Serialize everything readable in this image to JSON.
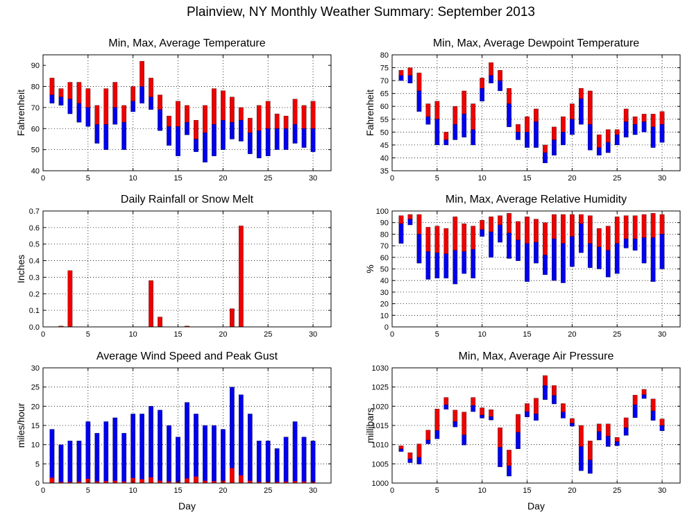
{
  "title": "Plainview, NY Monthly Weather Summary: September 2013",
  "colors": {
    "red": "#ee0000",
    "blue": "#0000ee",
    "axis": "#000000"
  },
  "chart_data": [
    {
      "id": "temperature",
      "type": "bar",
      "title": "Min, Max, Average Temperature",
      "xlabel": "",
      "ylabel": "Fahrenheit",
      "xlim": [
        0,
        32
      ],
      "ylim": [
        40,
        95
      ],
      "xticks": [
        0,
        5,
        10,
        15,
        20,
        25,
        30
      ],
      "yticks": [
        40,
        50,
        60,
        70,
        80,
        90
      ],
      "grid": true,
      "x": [
        1,
        2,
        3,
        4,
        5,
        6,
        7,
        8,
        9,
        10,
        11,
        12,
        13,
        14,
        15,
        16,
        17,
        18,
        19,
        20,
        21,
        22,
        23,
        24,
        25,
        26,
        27,
        28,
        29,
        30
      ],
      "min": [
        72,
        71,
        67,
        63,
        61,
        53,
        50,
        62,
        50,
        68,
        72,
        69,
        59,
        52,
        47,
        57,
        49,
        44,
        47,
        50,
        55,
        54,
        48,
        46,
        47,
        50,
        50,
        53,
        51,
        49
      ],
      "avg": [
        76,
        75,
        74,
        72,
        70,
        62,
        62,
        70,
        63,
        73,
        80,
        75,
        69,
        61,
        61,
        63,
        55,
        58,
        62,
        64,
        63,
        64,
        58,
        59,
        60,
        60,
        60,
        62,
        60,
        60
      ],
      "max": [
        84,
        79,
        82,
        82,
        79,
        71,
        79,
        82,
        71,
        80,
        92,
        84,
        76,
        66,
        73,
        71,
        64,
        71,
        79,
        78,
        75,
        70,
        65,
        71,
        73,
        67,
        66,
        74,
        71,
        73
      ]
    },
    {
      "id": "dewpoint",
      "type": "bar",
      "title": "Min, Max, Average Dewpoint Temperature",
      "xlabel": "",
      "ylabel": "Fahrenheit",
      "xlim": [
        0,
        32
      ],
      "ylim": [
        35,
        80
      ],
      "xticks": [
        0,
        5,
        10,
        15,
        20,
        25,
        30
      ],
      "yticks": [
        35,
        40,
        45,
        50,
        55,
        60,
        65,
        70,
        75,
        80
      ],
      "grid": true,
      "x": [
        1,
        2,
        3,
        4,
        5,
        6,
        7,
        8,
        9,
        10,
        11,
        12,
        13,
        14,
        15,
        16,
        17,
        18,
        19,
        20,
        21,
        22,
        23,
        24,
        25,
        26,
        27,
        28,
        29,
        30
      ],
      "min": [
        70,
        69,
        58,
        53,
        45,
        45,
        47,
        48,
        45,
        62,
        69,
        66,
        52,
        47,
        44,
        44,
        38,
        41,
        45,
        49,
        53,
        43,
        41,
        42,
        45,
        48,
        49,
        50,
        44,
        46
      ],
      "avg": [
        72,
        72,
        66,
        56,
        55,
        47,
        53,
        57,
        51,
        67,
        72,
        70,
        61,
        50,
        50,
        54,
        42,
        47,
        50,
        55,
        63,
        53,
        44,
        46,
        49,
        54,
        53,
        54,
        52,
        53
      ],
      "max": [
        74,
        75,
        73,
        61,
        62,
        50,
        60,
        66,
        61,
        71,
        77,
        74,
        67,
        53,
        56,
        59,
        45,
        52,
        56,
        61,
        67,
        66,
        49,
        51,
        51,
        59,
        56,
        57,
        57,
        58
      ]
    },
    {
      "id": "rainfall",
      "type": "bar",
      "title": "Daily Rainfall or Snow Melt",
      "xlabel": "",
      "ylabel": "Inches",
      "xlim": [
        0,
        32
      ],
      "ylim": [
        0,
        0.7
      ],
      "xticks": [
        0,
        5,
        10,
        15,
        20,
        25,
        30
      ],
      "yticks": [
        0,
        0.1,
        0.2,
        0.3,
        0.4,
        0.5,
        0.6,
        0.7
      ],
      "ytick_labels": [
        "0.0",
        "0.1",
        "0.2",
        "0.3",
        "0.4",
        "0.5",
        "0.6",
        "0.7"
      ],
      "grid": true,
      "x": [
        1,
        2,
        3,
        4,
        5,
        6,
        7,
        8,
        9,
        10,
        11,
        12,
        13,
        14,
        15,
        16,
        17,
        18,
        19,
        20,
        21,
        22,
        23,
        24,
        25,
        26,
        27,
        28,
        29,
        30
      ],
      "values": [
        0,
        0.005,
        0.34,
        0,
        0,
        0,
        0,
        0,
        0,
        0,
        0,
        0.28,
        0.06,
        0,
        0,
        0.005,
        0,
        0,
        0,
        0,
        0.11,
        0.61,
        0,
        0,
        0,
        0,
        0,
        0,
        0,
        0
      ]
    },
    {
      "id": "humidity",
      "type": "bar",
      "title": "Min, Max, Average Relative Humidity",
      "xlabel": "",
      "ylabel": "%",
      "xlim": [
        0,
        32
      ],
      "ylim": [
        0,
        100
      ],
      "xticks": [
        0,
        5,
        10,
        15,
        20,
        25,
        30
      ],
      "yticks": [
        0,
        10,
        20,
        30,
        40,
        50,
        60,
        70,
        80,
        90,
        100
      ],
      "grid": true,
      "x": [
        1,
        2,
        3,
        4,
        5,
        6,
        7,
        8,
        9,
        10,
        11,
        12,
        13,
        14,
        15,
        16,
        17,
        18,
        19,
        20,
        21,
        22,
        23,
        24,
        25,
        26,
        27,
        28,
        29,
        30
      ],
      "min": [
        72,
        88,
        55,
        41,
        42,
        42,
        37,
        46,
        42,
        78,
        60,
        73,
        59,
        57,
        39,
        55,
        45,
        40,
        38,
        52,
        64,
        51,
        50,
        43,
        46,
        68,
        66,
        55,
        39,
        50
      ],
      "avg": [
        89,
        93,
        80,
        65,
        64,
        63,
        66,
        65,
        67,
        84,
        82,
        88,
        81,
        75,
        72,
        73,
        62,
        76,
        72,
        78,
        89,
        72,
        69,
        66,
        72,
        76,
        76,
        77,
        77,
        80
      ],
      "max": [
        96,
        97,
        97,
        86,
        87,
        85,
        95,
        89,
        87,
        92,
        95,
        96,
        98,
        91,
        95,
        93,
        90,
        97,
        97,
        97,
        97,
        96,
        85,
        87,
        95,
        96,
        96,
        97,
        98,
        97
      ]
    },
    {
      "id": "wind",
      "type": "bar",
      "title": "Average Wind Speed and Peak Gust",
      "xlabel": "Day",
      "ylabel": "miles/hour",
      "xlim": [
        0,
        32
      ],
      "ylim": [
        0,
        30
      ],
      "xticks": [
        0,
        5,
        10,
        15,
        20,
        25,
        30
      ],
      "yticks": [
        0,
        5,
        10,
        15,
        20,
        25,
        30
      ],
      "grid": true,
      "x": [
        1,
        2,
        3,
        4,
        5,
        6,
        7,
        8,
        9,
        10,
        11,
        12,
        13,
        14,
        15,
        16,
        17,
        18,
        19,
        20,
        21,
        22,
        23,
        24,
        25,
        26,
        27,
        28,
        29,
        30
      ],
      "peak_gust": [
        14,
        10,
        11,
        11,
        16,
        13,
        16,
        17,
        13,
        18,
        18,
        20,
        19,
        15,
        12,
        21,
        18,
        15,
        15,
        14,
        25,
        23,
        18,
        11,
        11,
        9,
        12,
        16,
        12,
        11
      ],
      "avg_speed": [
        1.4,
        0.3,
        0.3,
        0.4,
        1.1,
        0.4,
        0.5,
        0.6,
        0.4,
        1.3,
        1.0,
        1.5,
        0.6,
        0.4,
        0.3,
        1.2,
        1.7,
        0.6,
        0.5,
        0.6,
        3.9,
        2.0,
        0.6,
        0.3,
        0.3,
        0.3,
        0.4,
        0.5,
        0.4,
        0.3
      ]
    },
    {
      "id": "pressure",
      "type": "bar",
      "title": "Min, Max, Average Air Pressure",
      "xlabel": "Day",
      "ylabel": "millibars",
      "xlim": [
        0,
        32
      ],
      "ylim": [
        1000,
        1030
      ],
      "xticks": [
        0,
        5,
        10,
        15,
        20,
        25,
        30
      ],
      "yticks": [
        1000,
        1005,
        1010,
        1015,
        1020,
        1025,
        1030
      ],
      "grid": true,
      "x": [
        1,
        2,
        3,
        4,
        5,
        6,
        7,
        8,
        9,
        10,
        11,
        12,
        13,
        14,
        15,
        16,
        17,
        18,
        19,
        20,
        21,
        22,
        23,
        24,
        25,
        26,
        27,
        28,
        29,
        30
      ],
      "min": [
        1008.2,
        1005.3,
        1004.9,
        1010.2,
        1011.5,
        1019.2,
        1014.6,
        1009.9,
        1018.6,
        1016.9,
        1016.4,
        1004.2,
        1001.8,
        1008.9,
        1017.2,
        1016.3,
        1021.7,
        1020.6,
        1016.9,
        1014.8,
        1003.2,
        1002.5,
        1011.2,
        1009.5,
        1009.7,
        1012.4,
        1017.0,
        1022.0,
        1016.3,
        1013.6
      ],
      "avg": [
        1008.9,
        1006.3,
        1006.7,
        1011.2,
        1013.7,
        1020.4,
        1016.0,
        1012.5,
        1020.2,
        1017.7,
        1017.3,
        1009.3,
        1004.5,
        1013.2,
        1018.6,
        1018.0,
        1025.4,
        1022.8,
        1018.5,
        1015.6,
        1009.5,
        1006.0,
        1013.4,
        1012.2,
        1010.8,
        1014.4,
        1020.4,
        1023.0,
        1018.8,
        1015.0
      ],
      "max": [
        1009.7,
        1007.9,
        1010.2,
        1013.8,
        1019.3,
        1022.3,
        1019.0,
        1018.5,
        1022.3,
        1019.6,
        1019.1,
        1014.4,
        1008.6,
        1017.9,
        1020.7,
        1022.1,
        1028.0,
        1025.4,
        1020.7,
        1016.8,
        1015.0,
        1011.0,
        1015.4,
        1015.4,
        1011.9,
        1017.0,
        1022.9,
        1024.4,
        1021.9,
        1016.7
      ]
    }
  ]
}
